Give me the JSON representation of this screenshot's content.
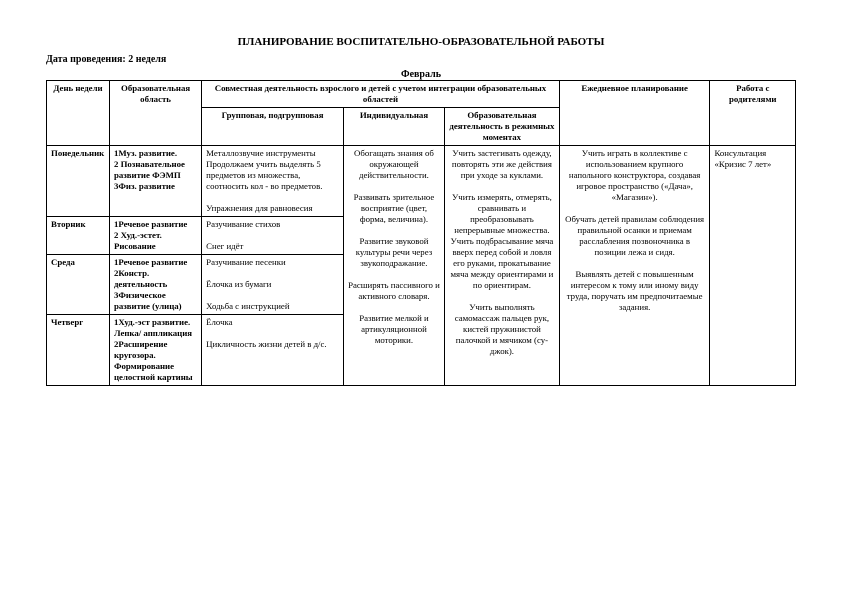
{
  "title": "ПЛАНИРОВАНИЕ ВОСПИТАТЕЛЬНО-ОБРАЗОВАТЕЛЬНОЙ РАБОТЫ",
  "date_label": "Дата проведения:  2 неделя",
  "month": "Февраль",
  "headers": {
    "day": "День недели",
    "area": "Образовательная область",
    "joint": "Совместная деятельность взрослого и детей с учетом интеграции образовательных областей",
    "group": "Групповая, подгрупповая",
    "individual": "Индивидуальная",
    "regime": "Образовательная деятельность в режимных моментах",
    "daily_plan": "Ежедневное планирование",
    "parents": "Работа с родителями"
  },
  "rows": {
    "mon": {
      "day": "Понедельник",
      "area": "1Муз. развитие.\n2 Познавательное развитие ФЭМП\n3Физ. развитие",
      "group": "Металлозвучие инструменты\nПродолжаем учить выделять 5 предметов из множества, соотносить кол - во предметов.\n\nУпражнения для равновесия"
    },
    "tue": {
      "day": "Вторник",
      "area": "1Речевое развитие\n2 Худ.-эстет.\nРисование",
      "group": "Разучивание стихов\n\nСнег идёт"
    },
    "wed": {
      "day": "Среда",
      "area": "1Речевое развитие\n2Констр. деятельность\n3Физическое развитие (улица)",
      "group": "Разучивание песенки\n\nЁлочка из бумаги\n\nХодьба с инструкцией"
    },
    "thu": {
      "day": "Четверг",
      "area": "1Худ.-эст развитие.\nЛепка/ аппликация\n2Расширение кругозора.\nФормирование целостной картины",
      "group": "Ёлочка\n\nЦикличность жизни детей в д/с."
    }
  },
  "individual": "Обогащать знания об окружающей действительности.\n\nРазвивать зрительное восприятие (цвет, форма, величина).\n\nРазвитие звуковой культуры речи через звукоподражание.\n\nРасширять пассивного и активного словаря.\n\nРазвитие мелкой и артикуляционной моторики.",
  "regime": "Учить застегивать одежду, повторять эти же действия при уходе за куклами.\n\nУчить измерять, отмерять, сравнивать и преобразовывать непрерывные множества.\nУчить подбрасывание мяча вверх перед собой и ловля его руками, прокатывание мяча между ориентирами и по ориентирам.\n\nУчить выполнять самомассаж пальцев рук, кистей пружинистой палочкой и мячиком (су-джок).",
  "daily_plan": "Учить играть в коллективе с использованием крупного напольного конструктора, создавая игровое пространство («Дача», «Магазин»).\n\nОбучать детей правилам соблюдения правильной осанки и приемам расслабления позвоночника в позиции лежа и сидя.\n\nВыявлять детей с повышенным интересом к тому или иному виду труда, поручать им предпочитаемые задания.",
  "parents": "Консультация «Кризис 7 лет»"
}
